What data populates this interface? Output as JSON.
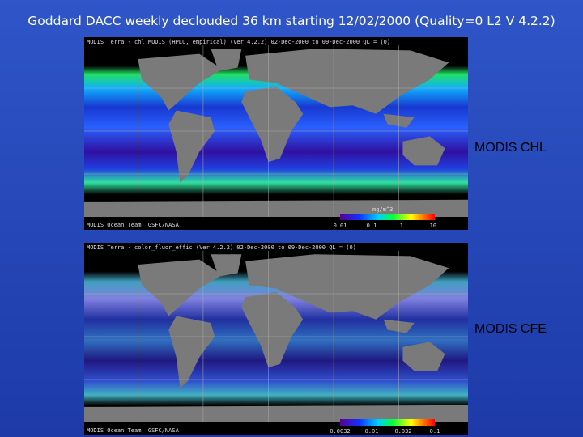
{
  "title": "Goddard DACC weekly declouded 36 km starting 12/02/2000 (Quality=0 L2 V 4.2.2)",
  "panels": [
    {
      "header": "MODIS Terra - chl_MODIS (HPLC, empirical)  (Ver 4.2.2)  02-Dec-2000 to 09-Dec-2000      QL = (0)",
      "footer": "MODIS Ocean Team, GSFC/NASA",
      "unit": "mg/m^3",
      "colorbar_labels": [
        "0.01",
        "0.1",
        "1.",
        "10."
      ],
      "label": "MODIS CHL"
    },
    {
      "header": "MODIS Terra - color_fluor_effic  (Ver 4.2.2)  02-Dec-2000 to 09-Dec-2000      QL = (0)",
      "footer": "MODIS Ocean Team, GSFC/NASA",
      "colorbar_labels": [
        "0.0032",
        "0.01",
        "0.032",
        "0.1"
      ],
      "label": "MODIS CFE"
    }
  ]
}
